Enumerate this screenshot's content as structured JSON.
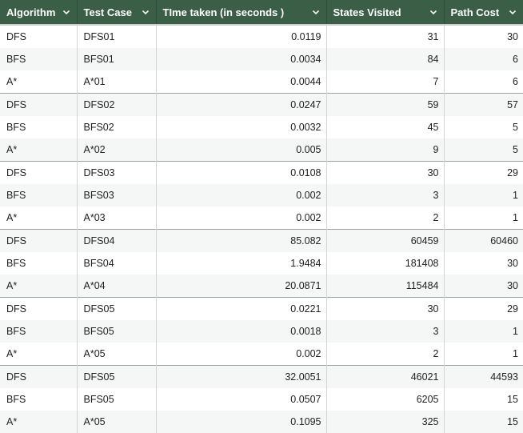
{
  "table": {
    "headers": [
      "Algorithm",
      "Test Case",
      "TIme taken (in seconds )",
      "States Visited",
      "Path Cost"
    ],
    "rows": [
      [
        "DFS",
        "DFS01",
        "0.0119",
        "31",
        "30"
      ],
      [
        "BFS",
        "BFS01",
        "0.0034",
        "84",
        "6"
      ],
      [
        "A*",
        "A*01",
        "0.0044",
        "7",
        "6"
      ],
      [
        "DFS",
        "DFS02",
        "0.0247",
        "59",
        "57"
      ],
      [
        "BFS",
        "BFS02",
        "0.0032",
        "45",
        "5"
      ],
      [
        "A*",
        "A*02",
        "0.005",
        "9",
        "5"
      ],
      [
        "DFS",
        "DFS03",
        "0.0108",
        "30",
        "29"
      ],
      [
        "BFS",
        "BFS03",
        "0.002",
        "3",
        "1"
      ],
      [
        "A*",
        "A*03",
        "0.002",
        "2",
        "1"
      ],
      [
        "DFS",
        "DFS04",
        "85.082",
        "60459",
        "60460"
      ],
      [
        "BFS",
        "BFS04",
        "1.9484",
        "181408",
        "30"
      ],
      [
        "A*",
        "A*04",
        "20.0871",
        "115484",
        "30"
      ],
      [
        "DFS",
        "DFS05",
        "0.0221",
        "30",
        "29"
      ],
      [
        "BFS",
        "BFS05",
        "0.0018",
        "3",
        "1"
      ],
      [
        "A*",
        "A*05",
        "0.002",
        "2",
        "1"
      ],
      [
        "DFS",
        "DFS05",
        "32.0051",
        "46021",
        "44593"
      ],
      [
        "BFS",
        "BFS05",
        "0.0507",
        "6205",
        "15"
      ],
      [
        "A*",
        "A*05",
        "0.1095",
        "325",
        "15"
      ]
    ]
  },
  "colors": {
    "header_bg": "#3b5e46",
    "header_text": "#ffffff",
    "row_alt": "#f5f7f6"
  },
  "icons": {
    "header_dropdown": "chevron-down-icon"
  }
}
